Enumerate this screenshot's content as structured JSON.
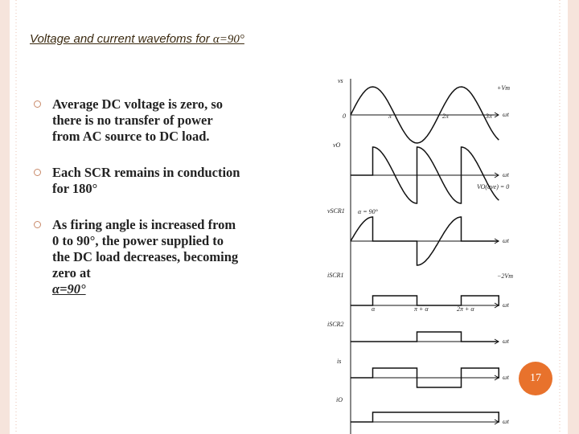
{
  "title": {
    "text": "Voltage and current wavefoms for ",
    "alpha": "α=90°"
  },
  "bullets": [
    {
      "text": "Average DC voltage is zero, so there is no transfer of power from AC source to DC load."
    },
    {
      "text": "Each SCR remains in conduction for 180°"
    },
    {
      "text": "As firing angle is increased from 0 to 90°, the power supplied to the DC load decreases, becoming zero at",
      "emphasis": "α=90°"
    }
  ],
  "diagram": {
    "labels": [
      "vs",
      "+Vm",
      "0",
      "π",
      "2π",
      "3π",
      "ωt",
      "vO",
      "ωt",
      "VO(ave) = 0",
      "vSCR1",
      "α = 90°",
      "ωt",
      "iSCR1",
      "−2Vm",
      "α",
      "π + α",
      "2π + α",
      "ωt",
      "iSCR2",
      "ωt",
      "is",
      "ωt",
      "iO",
      "ωt"
    ]
  },
  "page_number": "17"
}
